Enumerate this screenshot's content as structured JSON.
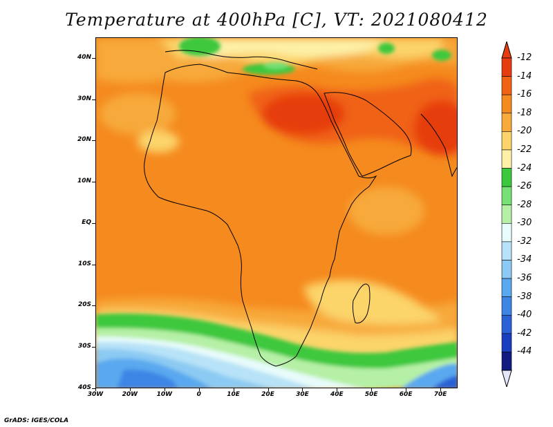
{
  "title": "Temperature at 400hPa [C], VT: 2021080412",
  "credit": "GrADS: IGES/COLA",
  "map": {
    "variable": "temperature",
    "level": "400hPa",
    "units": "C",
    "lon_range": [
      -30,
      75
    ],
    "lat_range": [
      -40,
      45
    ],
    "y_ticks": [
      {
        "value": 40,
        "label": "40N"
      },
      {
        "value": 30,
        "label": "30N"
      },
      {
        "value": 20,
        "label": "20N"
      },
      {
        "value": 10,
        "label": "10N"
      },
      {
        "value": 0,
        "label": "EQ"
      },
      {
        "value": -10,
        "label": "10S"
      },
      {
        "value": -20,
        "label": "20S"
      },
      {
        "value": -30,
        "label": "30S"
      },
      {
        "value": -40,
        "label": "40S"
      }
    ],
    "x_ticks": [
      {
        "value": -30,
        "label": "30W"
      },
      {
        "value": -20,
        "label": "20W"
      },
      {
        "value": -10,
        "label": "10W"
      },
      {
        "value": 0,
        "label": "0"
      },
      {
        "value": 10,
        "label": "10E"
      },
      {
        "value": 20,
        "label": "20E"
      },
      {
        "value": 30,
        "label": "30E"
      },
      {
        "value": 40,
        "label": "40E"
      },
      {
        "value": 50,
        "label": "50E"
      },
      {
        "value": 60,
        "label": "60E"
      },
      {
        "value": 70,
        "label": "70E"
      }
    ]
  },
  "colorbar": {
    "labels": [
      "-12",
      "-14",
      "-16",
      "-18",
      "-20",
      "-22",
      "-24",
      "-26",
      "-28",
      "-30",
      "-32",
      "-34",
      "-36",
      "-38",
      "-40",
      "-42",
      "-44"
    ],
    "colors": [
      "#e63c10",
      "#f06214",
      "#f58a1e",
      "#f7a93a",
      "#fbd46a",
      "#fdf1a8",
      "#3cc83c",
      "#76e076",
      "#b6f0a6",
      "#e8fbfb",
      "#b7e2f7",
      "#8ccaf3",
      "#5aa8ef",
      "#3e86e6",
      "#2a62d6",
      "#1a3fbe",
      "#111a80"
    ],
    "top_color": "#e63c10",
    "bottom_color": "#e6e6fb"
  }
}
